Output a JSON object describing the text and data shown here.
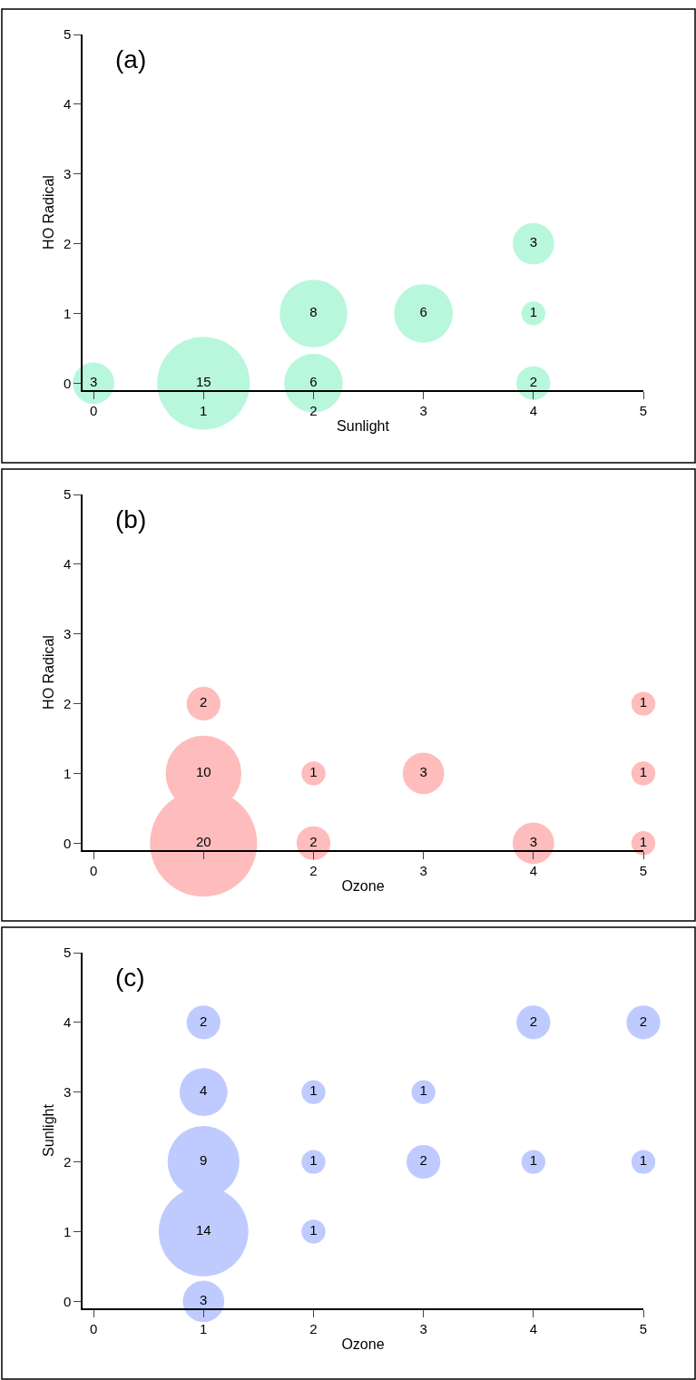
{
  "chart_data": [
    {
      "type": "bubble",
      "xlabel": "Sunlight",
      "ylabel": "HO Radical",
      "color": "#b8f7dc",
      "annotations": [
        "(a)"
      ],
      "x": [
        0,
        1,
        2,
        2,
        3,
        4,
        4,
        4
      ],
      "values": [
        0,
        0,
        0,
        1,
        1,
        2,
        1,
        0
      ],
      "sizes": [
        3,
        15,
        6,
        8,
        6,
        3,
        1,
        2
      ],
      "value_labels": [
        "3",
        "15",
        "6",
        "8",
        "6",
        "3",
        "1",
        "2"
      ],
      "xlim": [
        -0.1,
        5
      ],
      "ylim": [
        -0.1,
        5
      ],
      "xticks": [
        0,
        1,
        2,
        3,
        4,
        5
      ],
      "yticks": [
        0,
        1,
        2,
        3,
        4,
        5
      ]
    },
    {
      "type": "bubble",
      "xlabel": "Ozone",
      "ylabel": "HO Radical",
      "color": "#ffbcbc",
      "annotations": [
        "(b)"
      ],
      "x": [
        1,
        1,
        1,
        2,
        2,
        3,
        4,
        5,
        5,
        5
      ],
      "values": [
        0,
        1,
        2,
        1,
        0,
        1,
        0,
        2,
        1,
        0
      ],
      "sizes": [
        20,
        10,
        2,
        1,
        2,
        3,
        3,
        1,
        1,
        1
      ],
      "value_labels": [
        "20",
        "10",
        "2",
        "1",
        "2",
        "3",
        "3",
        "1",
        "1",
        "1"
      ],
      "xlim": [
        -0.1,
        5
      ],
      "ylim": [
        -0.1,
        5
      ],
      "xticks": [
        0,
        {
          "value": 1,
          "label": null
        },
        2,
        3,
        4,
        5
      ],
      "yticks": [
        0,
        1,
        2,
        3,
        4,
        5
      ]
    },
    {
      "type": "bubble",
      "xlabel": "Ozone",
      "ylabel": "Sunlight",
      "color": "#bfcbff",
      "annotations": [
        "(c)"
      ],
      "x": [
        1,
        1,
        1,
        1,
        1,
        2,
        2,
        2,
        3,
        3,
        4,
        4,
        5,
        5
      ],
      "values": [
        4,
        3,
        2,
        1,
        0,
        3,
        2,
        1,
        3,
        2,
        4,
        2,
        4,
        2
      ],
      "sizes": [
        2,
        4,
        9,
        14,
        3,
        1,
        1,
        1,
        1,
        2,
        2,
        1,
        2,
        1
      ],
      "value_labels": [
        "2",
        "4",
        "9",
        "14",
        "3",
        "1",
        "1",
        "1",
        "1",
        "2",
        "2",
        "1",
        "2",
        "1"
      ],
      "xlim": [
        -0.1,
        5
      ],
      "ylim": [
        -0.1,
        5
      ],
      "xticks": [
        0,
        1,
        2,
        3,
        4,
        5
      ],
      "yticks": [
        0,
        1,
        2,
        3,
        4,
        5
      ]
    }
  ]
}
